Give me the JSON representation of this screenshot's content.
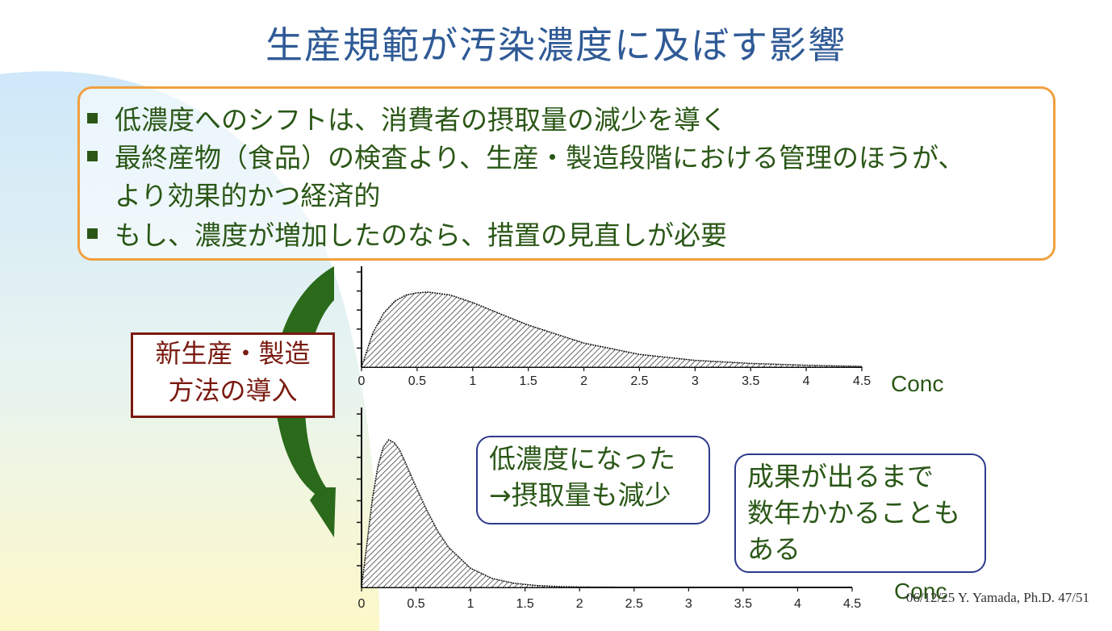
{
  "slide": {
    "title": "生産規範が汚染濃度に及ぼす影響",
    "bullets": [
      "低濃度へのシフトは、消費者の摂取量の減少を導く",
      "最終産物（食品）の検査より、生産・製造段階における管理のほうが、",
      "より効果的かつ経済的",
      "もし、濃度が増加したのなら、措置の見直しが必要"
    ],
    "intro_box": {
      "line1": "新生産・製造",
      "line2": "方法の導入"
    },
    "note_left": {
      "line1": "低濃度になった",
      "line2": "→摂取量も減少"
    },
    "note_right": {
      "line1": "成果が出るまで",
      "line2": "数年かかることも",
      "line3": "ある"
    },
    "footer": "06/12/25 Y. Yamada, Ph.D.  47/51"
  },
  "colors": {
    "title": "#2f5a96",
    "bullet_text": "#2a5716",
    "box_border_orange": "#f0a040",
    "intro_border": "#7a1a10",
    "note_border": "#2e3a8c",
    "arrow": "#2a6a1a"
  },
  "chart_data": [
    {
      "type": "area",
      "x_ticks": [
        "0",
        "0.5",
        "1",
        "1.5",
        "2",
        "2.5",
        "3",
        "3.5",
        "4",
        "4.5"
      ],
      "xlabel": "Conc",
      "xlim": [
        0,
        4.5
      ],
      "ylim": [
        0,
        1
      ],
      "series": [
        {
          "x": [
            0,
            0.1,
            0.2,
            0.3,
            0.4,
            0.5,
            0.6,
            0.8,
            1.0,
            1.2,
            1.5,
            2.0,
            2.5,
            3.0,
            3.5,
            4.0,
            4.5
          ],
          "y": [
            0,
            0.45,
            0.72,
            0.88,
            0.96,
            0.99,
            1.0,
            0.96,
            0.86,
            0.74,
            0.56,
            0.32,
            0.17,
            0.09,
            0.05,
            0.025,
            0.01
          ]
        }
      ]
    },
    {
      "type": "area",
      "x_ticks": [
        "0",
        "0.5",
        "1",
        "1.5",
        "2",
        "2.5",
        "3",
        "3.5",
        "4",
        "4.5"
      ],
      "xlabel": "Conc",
      "xlim": [
        0,
        4.5
      ],
      "ylim": [
        0,
        1
      ],
      "series": [
        {
          "x": [
            0,
            0.05,
            0.1,
            0.15,
            0.2,
            0.25,
            0.3,
            0.35,
            0.4,
            0.5,
            0.6,
            0.7,
            0.8,
            1.0,
            1.2,
            1.4,
            1.6,
            1.8,
            2.0,
            2.5,
            3.0
          ],
          "y": [
            0,
            0.3,
            0.6,
            0.82,
            0.95,
            1.0,
            0.98,
            0.93,
            0.85,
            0.68,
            0.52,
            0.38,
            0.27,
            0.13,
            0.06,
            0.028,
            0.013,
            0.006,
            0.003,
            0.001,
            0
          ]
        }
      ]
    }
  ]
}
